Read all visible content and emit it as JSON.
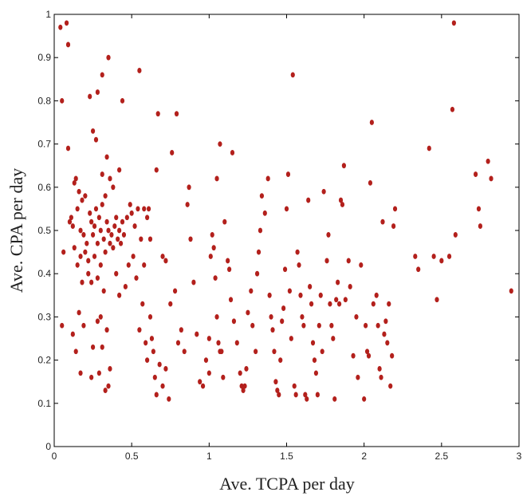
{
  "chart_data": {
    "type": "scatter",
    "title": "",
    "xlabel": "Ave. TCPA per day",
    "ylabel": "Ave. CPA per day",
    "xlim": [
      0,
      3
    ],
    "ylim": [
      0,
      1
    ],
    "xticks": [
      0,
      0.5,
      1,
      1.5,
      2,
      2.5,
      3
    ],
    "xtick_labels": [
      "0",
      "0.5",
      "1",
      "1.5",
      "2",
      "2.5",
      "3"
    ],
    "yticks": [
      0,
      0.1,
      0.2,
      0.3,
      0.4,
      0.5,
      0.6,
      0.7,
      0.8,
      0.9,
      1
    ],
    "ytick_labels": [
      "0",
      "0.1",
      "0.2",
      "0.3",
      "0.4",
      "0.5",
      "0.6",
      "0.7",
      "0.8",
      "0.9",
      "1"
    ],
    "grid": false,
    "legend": "none",
    "marker_color": "#b3201c",
    "points": [
      [
        0.04,
        0.97
      ],
      [
        0.08,
        0.98
      ],
      [
        0.09,
        0.93
      ],
      [
        0.05,
        0.8
      ],
      [
        0.06,
        0.45
      ],
      [
        0.05,
        0.28
      ],
      [
        0.09,
        0.69
      ],
      [
        0.1,
        0.52
      ],
      [
        0.11,
        0.53
      ],
      [
        0.12,
        0.51
      ],
      [
        0.13,
        0.61
      ],
      [
        0.14,
        0.62
      ],
      [
        0.13,
        0.46
      ],
      [
        0.15,
        0.55
      ],
      [
        0.16,
        0.59
      ],
      [
        0.17,
        0.5
      ],
      [
        0.18,
        0.57
      ],
      [
        0.17,
        0.44
      ],
      [
        0.19,
        0.49
      ],
      [
        0.2,
        0.58
      ],
      [
        0.21,
        0.47
      ],
      [
        0.22,
        0.43
      ],
      [
        0.23,
        0.54
      ],
      [
        0.24,
        0.52
      ],
      [
        0.25,
        0.49
      ],
      [
        0.26,
        0.51
      ],
      [
        0.27,
        0.55
      ],
      [
        0.28,
        0.47
      ],
      [
        0.29,
        0.53
      ],
      [
        0.3,
        0.5
      ],
      [
        0.31,
        0.56
      ],
      [
        0.32,
        0.48
      ],
      [
        0.33,
        0.45
      ],
      [
        0.34,
        0.52
      ],
      [
        0.35,
        0.5
      ],
      [
        0.36,
        0.47
      ],
      [
        0.37,
        0.49
      ],
      [
        0.38,
        0.46
      ],
      [
        0.39,
        0.51
      ],
      [
        0.4,
        0.53
      ],
      [
        0.41,
        0.48
      ],
      [
        0.42,
        0.5
      ],
      [
        0.43,
        0.47
      ],
      [
        0.44,
        0.52
      ],
      [
        0.45,
        0.49
      ],
      [
        0.47,
        0.53
      ],
      [
        0.49,
        0.56
      ],
      [
        0.5,
        0.54
      ],
      [
        0.52,
        0.51
      ],
      [
        0.54,
        0.55
      ],
      [
        0.56,
        0.48
      ],
      [
        0.58,
        0.55
      ],
      [
        0.6,
        0.53
      ],
      [
        0.61,
        0.55
      ],
      [
        0.55,
        0.87
      ],
      [
        0.2,
        0.45
      ],
      [
        0.22,
        0.4
      ],
      [
        0.24,
        0.38
      ],
      [
        0.26,
        0.44
      ],
      [
        0.28,
        0.39
      ],
      [
        0.3,
        0.42
      ],
      [
        0.32,
        0.36
      ],
      [
        0.15,
        0.42
      ],
      [
        0.18,
        0.38
      ],
      [
        0.16,
        0.31
      ],
      [
        0.19,
        0.28
      ],
      [
        0.12,
        0.26
      ],
      [
        0.14,
        0.22
      ],
      [
        0.17,
        0.17
      ],
      [
        0.23,
        0.81
      ],
      [
        0.25,
        0.73
      ],
      [
        0.27,
        0.71
      ],
      [
        0.28,
        0.82
      ],
      [
        0.31,
        0.86
      ],
      [
        0.35,
        0.9
      ],
      [
        0.44,
        0.8
      ],
      [
        0.31,
        0.63
      ],
      [
        0.34,
        0.67
      ],
      [
        0.36,
        0.62
      ],
      [
        0.33,
        0.58
      ],
      [
        0.38,
        0.6
      ],
      [
        0.42,
        0.64
      ],
      [
        0.25,
        0.23
      ],
      [
        0.28,
        0.29
      ],
      [
        0.3,
        0.3
      ],
      [
        0.31,
        0.23
      ],
      [
        0.34,
        0.27
      ],
      [
        0.36,
        0.18
      ],
      [
        0.33,
        0.13
      ],
      [
        0.35,
        0.14
      ],
      [
        0.29,
        0.17
      ],
      [
        0.24,
        0.16
      ],
      [
        0.4,
        0.4
      ],
      [
        0.42,
        0.35
      ],
      [
        0.46,
        0.37
      ],
      [
        0.48,
        0.42
      ],
      [
        0.51,
        0.44
      ],
      [
        0.53,
        0.39
      ],
      [
        0.55,
        0.27
      ],
      [
        0.57,
        0.33
      ],
      [
        0.59,
        0.24
      ],
      [
        0.6,
        0.2
      ],
      [
        0.62,
        0.3
      ],
      [
        0.63,
        0.25
      ],
      [
        0.64,
        0.22
      ],
      [
        0.65,
        0.16
      ],
      [
        0.66,
        0.12
      ],
      [
        0.68,
        0.19
      ],
      [
        0.7,
        0.14
      ],
      [
        0.72,
        0.18
      ],
      [
        0.74,
        0.11
      ],
      [
        0.58,
        0.42
      ],
      [
        0.62,
        0.48
      ],
      [
        0.66,
        0.64
      ],
      [
        0.67,
        0.77
      ],
      [
        0.7,
        0.44
      ],
      [
        0.72,
        0.43
      ],
      [
        0.76,
        0.68
      ],
      [
        0.79,
        0.77
      ],
      [
        0.75,
        0.33
      ],
      [
        0.78,
        0.36
      ],
      [
        0.8,
        0.24
      ],
      [
        0.82,
        0.27
      ],
      [
        0.84,
        0.22
      ],
      [
        0.86,
        0.56
      ],
      [
        0.87,
        0.6
      ],
      [
        0.88,
        0.48
      ],
      [
        0.9,
        0.38
      ],
      [
        0.92,
        0.26
      ],
      [
        0.94,
        0.15
      ],
      [
        0.96,
        0.14
      ],
      [
        0.98,
        0.2
      ],
      [
        1.0,
        0.25
      ],
      [
        1.01,
        0.44
      ],
      [
        1.02,
        0.49
      ],
      [
        1.03,
        0.46
      ],
      [
        1.04,
        0.39
      ],
      [
        1.05,
        0.3
      ],
      [
        1.06,
        0.24
      ],
      [
        1.07,
        0.22
      ],
      [
        1.08,
        0.22
      ],
      [
        1.09,
        0.16
      ],
      [
        1.0,
        0.17
      ],
      [
        1.05,
        0.62
      ],
      [
        1.07,
        0.7
      ],
      [
        1.1,
        0.52
      ],
      [
        1.12,
        0.43
      ],
      [
        1.13,
        0.41
      ],
      [
        1.14,
        0.34
      ],
      [
        1.15,
        0.68
      ],
      [
        1.16,
        0.29
      ],
      [
        1.18,
        0.24
      ],
      [
        1.2,
        0.17
      ],
      [
        1.21,
        0.14
      ],
      [
        1.22,
        0.13
      ],
      [
        1.23,
        0.14
      ],
      [
        1.24,
        0.18
      ],
      [
        1.25,
        0.31
      ],
      [
        1.27,
        0.36
      ],
      [
        1.28,
        0.28
      ],
      [
        1.3,
        0.22
      ],
      [
        1.31,
        0.4
      ],
      [
        1.32,
        0.45
      ],
      [
        1.33,
        0.5
      ],
      [
        1.34,
        0.58
      ],
      [
        1.36,
        0.54
      ],
      [
        1.38,
        0.62
      ],
      [
        1.39,
        0.35
      ],
      [
        1.4,
        0.3
      ],
      [
        1.41,
        0.27
      ],
      [
        1.42,
        0.22
      ],
      [
        1.43,
        0.15
      ],
      [
        1.44,
        0.13
      ],
      [
        1.45,
        0.12
      ],
      [
        1.46,
        0.2
      ],
      [
        1.47,
        0.29
      ],
      [
        1.48,
        0.32
      ],
      [
        1.49,
        0.41
      ],
      [
        1.5,
        0.55
      ],
      [
        1.51,
        0.63
      ],
      [
        1.52,
        0.36
      ],
      [
        1.53,
        0.25
      ],
      [
        1.54,
        0.86
      ],
      [
        1.55,
        0.14
      ],
      [
        1.56,
        0.12
      ],
      [
        1.57,
        0.45
      ],
      [
        1.58,
        0.42
      ],
      [
        1.59,
        0.35
      ],
      [
        1.6,
        0.3
      ],
      [
        1.61,
        0.28
      ],
      [
        1.62,
        0.12
      ],
      [
        1.63,
        0.11
      ],
      [
        1.64,
        0.57
      ],
      [
        1.65,
        0.37
      ],
      [
        1.66,
        0.33
      ],
      [
        1.67,
        0.24
      ],
      [
        1.68,
        0.2
      ],
      [
        1.69,
        0.17
      ],
      [
        1.7,
        0.12
      ],
      [
        1.71,
        0.28
      ],
      [
        1.72,
        0.35
      ],
      [
        1.73,
        0.22
      ],
      [
        1.74,
        0.59
      ],
      [
        1.76,
        0.43
      ],
      [
        1.77,
        0.49
      ],
      [
        1.78,
        0.33
      ],
      [
        1.79,
        0.28
      ],
      [
        1.8,
        0.25
      ],
      [
        1.81,
        0.11
      ],
      [
        1.82,
        0.34
      ],
      [
        1.83,
        0.38
      ],
      [
        1.84,
        0.33
      ],
      [
        1.85,
        0.57
      ],
      [
        1.86,
        0.56
      ],
      [
        1.87,
        0.65
      ],
      [
        1.88,
        0.34
      ],
      [
        1.9,
        0.43
      ],
      [
        1.91,
        0.37
      ],
      [
        1.93,
        0.21
      ],
      [
        1.95,
        0.3
      ],
      [
        1.96,
        0.16
      ],
      [
        1.98,
        0.42
      ],
      [
        2.0,
        0.11
      ],
      [
        2.01,
        0.28
      ],
      [
        2.02,
        0.22
      ],
      [
        2.03,
        0.21
      ],
      [
        2.04,
        0.61
      ],
      [
        2.05,
        0.75
      ],
      [
        2.06,
        0.33
      ],
      [
        2.08,
        0.35
      ],
      [
        2.09,
        0.28
      ],
      [
        2.1,
        0.18
      ],
      [
        2.11,
        0.16
      ],
      [
        2.12,
        0.52
      ],
      [
        2.13,
        0.26
      ],
      [
        2.14,
        0.29
      ],
      [
        2.15,
        0.24
      ],
      [
        2.16,
        0.33
      ],
      [
        2.17,
        0.14
      ],
      [
        2.18,
        0.21
      ],
      [
        2.19,
        0.51
      ],
      [
        2.2,
        0.55
      ],
      [
        2.33,
        0.44
      ],
      [
        2.35,
        0.41
      ],
      [
        2.42,
        0.69
      ],
      [
        2.45,
        0.44
      ],
      [
        2.47,
        0.34
      ],
      [
        2.5,
        0.43
      ],
      [
        2.55,
        0.44
      ],
      [
        2.57,
        0.78
      ],
      [
        2.58,
        0.98
      ],
      [
        2.59,
        0.49
      ],
      [
        2.72,
        0.63
      ],
      [
        2.74,
        0.55
      ],
      [
        2.75,
        0.51
      ],
      [
        2.8,
        0.66
      ],
      [
        2.82,
        0.62
      ],
      [
        2.95,
        0.36
      ]
    ]
  }
}
